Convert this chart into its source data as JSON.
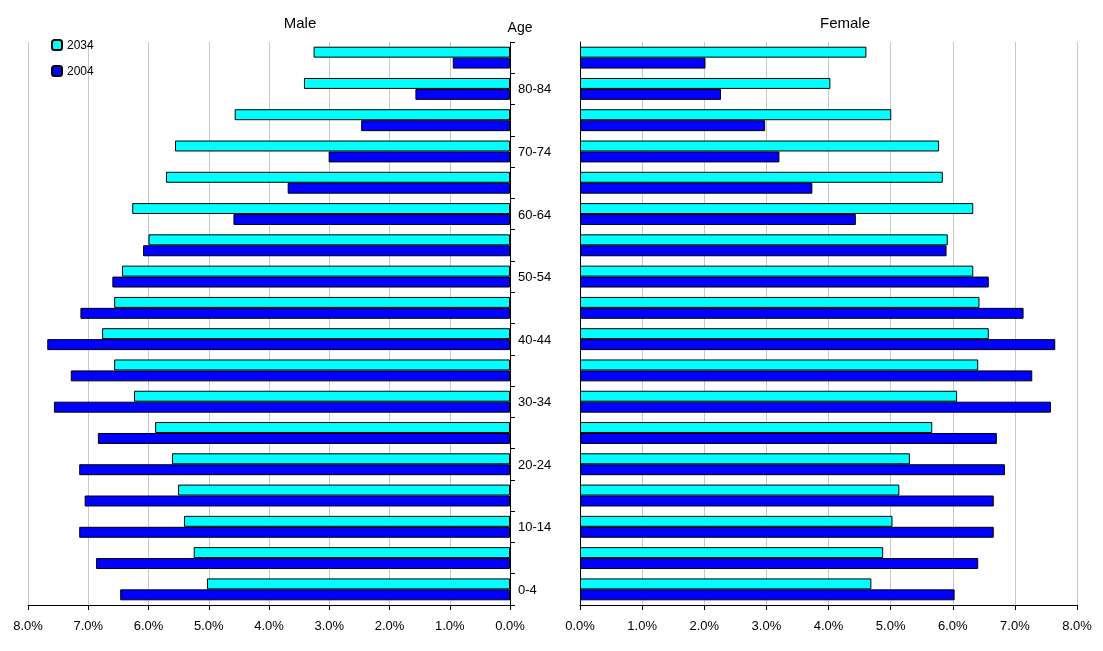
{
  "chart_data": [
    {
      "type": "bar",
      "orientation": "horizontal",
      "title": "Male",
      "ylabel": "Age",
      "categories": [
        null,
        "80-84",
        null,
        "70-74",
        null,
        "60-64",
        null,
        "50-54",
        null,
        "40-44",
        null,
        "30-34",
        null,
        "20-24",
        null,
        "10-14",
        null,
        "0-4"
      ],
      "series": [
        {
          "name": "2034",
          "color": "#00ffff",
          "values": [
            3.26,
            3.42,
            4.57,
            5.56,
            5.71,
            6.27,
            6.0,
            6.44,
            6.57,
            6.77,
            6.57,
            6.24,
            5.89,
            5.61,
            5.51,
            5.41,
            5.25,
            5.03
          ]
        },
        {
          "name": "2004",
          "color": "#0000ff",
          "values": [
            0.95,
            1.57,
            2.47,
            3.01,
            3.69,
            4.59,
            6.09,
            6.6,
            7.13,
            7.68,
            7.29,
            7.57,
            6.84,
            7.15,
            7.06,
            7.15,
            6.87,
            6.47
          ]
        }
      ],
      "xlim": [
        8,
        0
      ],
      "xticks": [
        {
          "value": 8,
          "label": "8.0%"
        },
        {
          "value": 7,
          "label": "7.0%"
        },
        {
          "value": 6,
          "label": "6.0%"
        },
        {
          "value": 5,
          "label": "5.0%"
        },
        {
          "value": 4,
          "label": "4.0%"
        },
        {
          "value": 3,
          "label": "3.0%"
        },
        {
          "value": 2,
          "label": "2.0%"
        },
        {
          "value": 1,
          "label": "1.0%"
        },
        {
          "value": 0,
          "label": "0.0%"
        }
      ],
      "grid": "x",
      "legend": "top left"
    },
    {
      "type": "bar",
      "orientation": "horizontal",
      "title": "Female",
      "categories": [
        null,
        null,
        null,
        null,
        null,
        null,
        null,
        null,
        null,
        null,
        null,
        null,
        null,
        null,
        null,
        null,
        null,
        null
      ],
      "series": [
        {
          "color": "#00ffff",
          "values": [
            4.61,
            4.03,
            5.01,
            5.78,
            5.84,
            6.33,
            5.92,
            6.33,
            6.43,
            6.58,
            6.41,
            6.07,
            5.67,
            5.31,
            5.14,
            5.03,
            4.88,
            4.69
          ]
        },
        {
          "color": "#0000ff",
          "values": [
            2.02,
            2.27,
            2.98,
            3.21,
            3.74,
            4.44,
            5.9,
            6.58,
            7.14,
            7.65,
            7.28,
            7.58,
            6.71,
            6.84,
            6.66,
            6.66,
            6.41,
            6.03
          ]
        }
      ],
      "xlim": [
        0,
        8
      ],
      "xticks": [
        {
          "value": 0,
          "label": "0.0%"
        },
        {
          "value": 1,
          "label": "1.0%"
        },
        {
          "value": 2,
          "label": "2.0%"
        },
        {
          "value": 3,
          "label": "3.0%"
        },
        {
          "value": 4,
          "label": "4.0%"
        },
        {
          "value": 5,
          "label": "5.0%"
        },
        {
          "value": 6,
          "label": "6.0%"
        },
        {
          "value": 7,
          "label": "7.0%"
        },
        {
          "value": 8,
          "label": "8.0%"
        }
      ],
      "grid": "x",
      "tick_labels": "x"
    }
  ]
}
